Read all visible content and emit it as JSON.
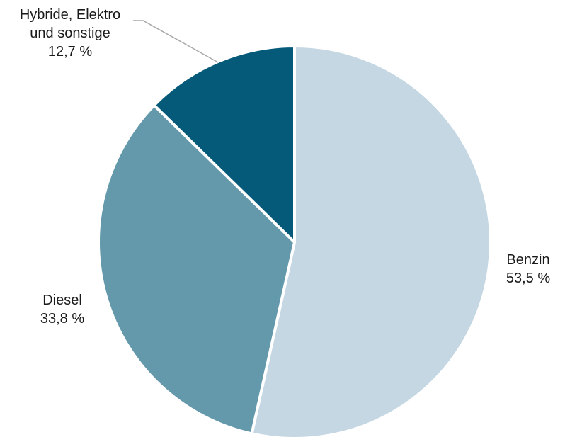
{
  "chart_data": {
    "type": "pie",
    "title": "",
    "slices": [
      {
        "label": "Benzin",
        "value": 53.5,
        "value_text": "53,5 %",
        "color": "#c4d7e3"
      },
      {
        "label": "Diesel",
        "value": 33.8,
        "value_text": "33,8 %",
        "color": "#6399ab"
      },
      {
        "label": "Hybride, Elektro und sonstige",
        "label_lines": [
          "Hybride, Elektro",
          "und sonstige"
        ],
        "value": 12.7,
        "value_text": "12,7 %",
        "color": "#045a78"
      }
    ],
    "start_angle_deg": 0,
    "direction": "clockwise",
    "legend": "none"
  }
}
